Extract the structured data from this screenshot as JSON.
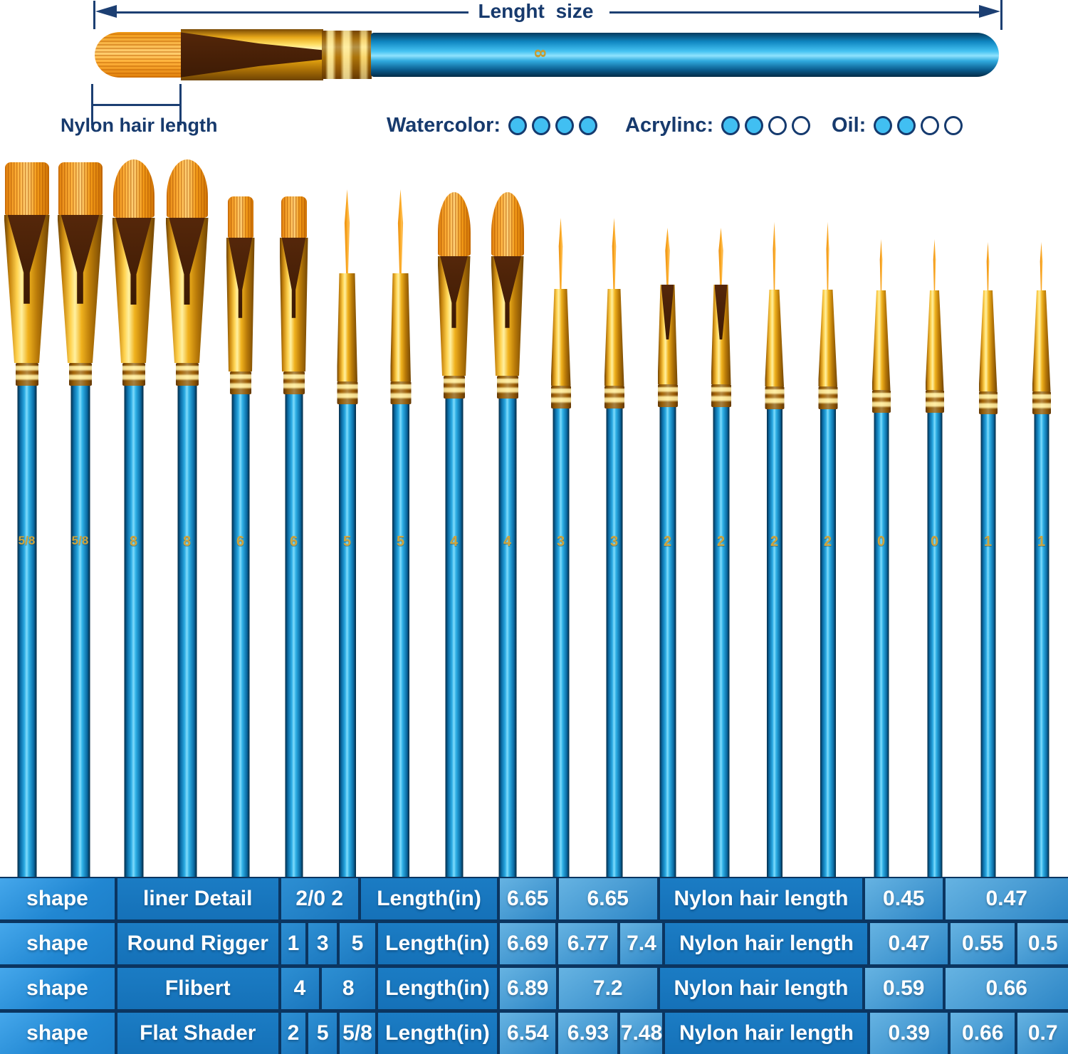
{
  "top": {
    "length_label": "Lenght size",
    "nylon_label": "Nylon hair length",
    "brush_number": "8"
  },
  "ratings": [
    {
      "label": "Watercolor:",
      "filled": 4,
      "total": 4
    },
    {
      "label": "Acrylinc:",
      "filled": 2,
      "total": 4
    },
    {
      "label": "Oil:",
      "filled": 2,
      "total": 4
    }
  ],
  "brushes": [
    {
      "size": "5/8",
      "shape": "flat-shader"
    },
    {
      "size": "5/8",
      "shape": "flat-shader"
    },
    {
      "size": "8",
      "shape": "filbert"
    },
    {
      "size": "8",
      "shape": "filbert"
    },
    {
      "size": "6",
      "shape": "flat-shader"
    },
    {
      "size": "6",
      "shape": "flat-shader"
    },
    {
      "size": "5",
      "shape": "round"
    },
    {
      "size": "5",
      "shape": "round"
    },
    {
      "size": "4",
      "shape": "filbert"
    },
    {
      "size": "4",
      "shape": "filbert"
    },
    {
      "size": "3",
      "shape": "round"
    },
    {
      "size": "3",
      "shape": "round"
    },
    {
      "size": "2",
      "shape": "round"
    },
    {
      "size": "2",
      "shape": "round"
    },
    {
      "size": "2",
      "shape": "liner"
    },
    {
      "size": "2",
      "shape": "liner"
    },
    {
      "size": "0",
      "shape": "liner"
    },
    {
      "size": "0",
      "shape": "liner"
    },
    {
      "size": "1",
      "shape": "liner"
    },
    {
      "size": "1",
      "shape": "liner"
    }
  ],
  "table": {
    "rows": [
      {
        "cells": [
          {
            "text": "shape",
            "kind": "shape",
            "w": 11
          },
          {
            "text": "liner Detail",
            "kind": "label",
            "w": 15.3
          },
          {
            "text": "2/0 2",
            "kind": "size",
            "w": 7.5
          },
          {
            "text": "Length(in)",
            "kind": "label",
            "w": 13
          },
          {
            "text": "6.65",
            "kind": "value",
            "w": 5.5
          },
          {
            "text": "6.65",
            "kind": "value",
            "w": 9.5
          },
          {
            "text": "Nylon hair length",
            "kind": "label",
            "w": 19.2
          },
          {
            "text": "0.45",
            "kind": "value",
            "w": 7.5
          },
          {
            "text": "0.47",
            "kind": "value",
            "w": 11.5
          }
        ]
      },
      {
        "cells": [
          {
            "text": "shape",
            "kind": "shape",
            "w": 11
          },
          {
            "text": "Round Rigger",
            "kind": "label",
            "w": 15.3
          },
          {
            "text": "1",
            "kind": "size",
            "w": 2.6
          },
          {
            "text": "3",
            "kind": "size",
            "w": 2.9
          },
          {
            "text": "5",
            "kind": "size",
            "w": 3.6
          },
          {
            "text": "Length(in)",
            "kind": "label",
            "w": 11.4
          },
          {
            "text": "6.69",
            "kind": "value",
            "w": 5.5
          },
          {
            "text": "6.77",
            "kind": "value",
            "w": 5.8
          },
          {
            "text": "7.4",
            "kind": "value",
            "w": 4.2
          },
          {
            "text": "Nylon hair length",
            "kind": "label",
            "w": 19.2
          },
          {
            "text": "0.47",
            "kind": "value",
            "w": 7.5
          },
          {
            "text": "0.55",
            "kind": "value",
            "w": 6.3
          },
          {
            "text": "0.5",
            "kind": "value",
            "w": 4.7
          }
        ]
      },
      {
        "cells": [
          {
            "text": "shape",
            "kind": "shape",
            "w": 11
          },
          {
            "text": "Flibert",
            "kind": "label",
            "w": 15.3
          },
          {
            "text": "4",
            "kind": "size",
            "w": 3.8
          },
          {
            "text": "8",
            "kind": "size",
            "w": 5.3
          },
          {
            "text": "Length(in)",
            "kind": "label",
            "w": 11.4
          },
          {
            "text": "6.89",
            "kind": "value",
            "w": 5.5
          },
          {
            "text": "7.2",
            "kind": "value",
            "w": 9.5
          },
          {
            "text": "Nylon hair length",
            "kind": "label",
            "w": 19.2
          },
          {
            "text": "0.59",
            "kind": "value",
            "w": 7.5
          },
          {
            "text": "0.66",
            "kind": "value",
            "w": 11.5
          }
        ]
      },
      {
        "cells": [
          {
            "text": "shape",
            "kind": "shape",
            "w": 11
          },
          {
            "text": "Flat Shader",
            "kind": "label",
            "w": 15.3
          },
          {
            "text": "2",
            "kind": "size",
            "w": 2.6
          },
          {
            "text": "5",
            "kind": "size",
            "w": 2.9
          },
          {
            "text": "5/8",
            "kind": "size",
            "w": 3.6
          },
          {
            "text": "Length(in)",
            "kind": "label",
            "w": 11.4
          },
          {
            "text": "6.54",
            "kind": "value",
            "w": 5.5
          },
          {
            "text": "6.93",
            "kind": "value",
            "w": 5.8
          },
          {
            "text": "7.48",
            "kind": "value",
            "w": 4.2
          },
          {
            "text": "Nylon hair length",
            "kind": "label",
            "w": 19.2
          },
          {
            "text": "0.39",
            "kind": "value",
            "w": 7.5
          },
          {
            "text": "0.66",
            "kind": "value",
            "w": 6.3
          },
          {
            "text": "0.7",
            "kind": "value",
            "w": 4.7
          }
        ]
      }
    ]
  }
}
